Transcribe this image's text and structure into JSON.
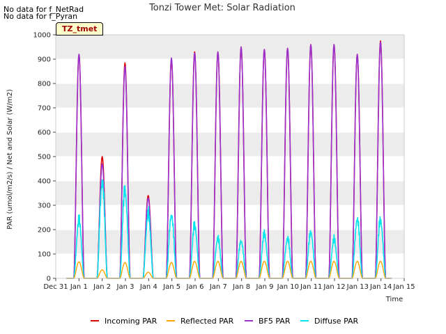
{
  "notes": [
    "No data for f_NetRad",
    "No data for f_Pyran"
  ],
  "badge": "TZ_tmet",
  "colors": {
    "incoming": "#dd0000",
    "reflected": "#ffa500",
    "bf5": "#9b30d0",
    "diffuse": "#00e5ee",
    "band": "#ececec"
  },
  "chart_data": {
    "type": "line",
    "title": "Tonzi Tower Met: Solar Radiation",
    "xlabel": "Time",
    "ylabel": "PAR (umol/m2/s) / Net and Solar (W/m2)",
    "ylim": [
      0,
      1000
    ],
    "xlim": [
      0,
      15
    ],
    "yticks": [
      0,
      100,
      200,
      300,
      400,
      500,
      600,
      700,
      800,
      900,
      1000
    ],
    "xticks": [
      {
        "v": 0,
        "label": "Dec 31"
      },
      {
        "v": 1,
        "label": "Jan 1"
      },
      {
        "v": 2,
        "label": "Jan 2"
      },
      {
        "v": 3,
        "label": "Jan 3"
      },
      {
        "v": 4,
        "label": "Jan 4"
      },
      {
        "v": 5,
        "label": "Jan 5"
      },
      {
        "v": 6,
        "label": "Jan 6"
      },
      {
        "v": 7,
        "label": "Jan 7"
      },
      {
        "v": 8,
        "label": "Jan 8"
      },
      {
        "v": 9,
        "label": "Jan 9"
      },
      {
        "v": 10,
        "label": "Jan 10"
      },
      {
        "v": 11,
        "label": "Jan 11"
      },
      {
        "v": 12,
        "label": "Jan 12"
      },
      {
        "v": 13,
        "label": "Jan 13"
      },
      {
        "v": 14,
        "label": "Jan 14"
      },
      {
        "v": 15,
        "label": "Jan 15"
      }
    ],
    "series": [
      {
        "name": "Incoming PAR",
        "key": "incoming",
        "daily_peaks": [
          920,
          500,
          885,
          340,
          900,
          930,
          930,
          950,
          940,
          945,
          960,
          960,
          920,
          975
        ]
      },
      {
        "name": "Reflected PAR",
        "key": "reflected",
        "daily_peaks": [
          68,
          35,
          65,
          25,
          65,
          70,
          70,
          70,
          70,
          70,
          70,
          70,
          70,
          70
        ]
      },
      {
        "name": "BF5 PAR",
        "key": "bf5",
        "daily_peaks": [
          920,
          470,
          870,
          330,
          905,
          925,
          930,
          950,
          940,
          945,
          960,
          960,
          920,
          970
        ]
      },
      {
        "name": "Diffuse PAR",
        "key": "diffuse",
        "daily_peaks": [
          270,
          450,
          410,
          300,
          295,
          245,
          185,
          175,
          205,
          185,
          215,
          180,
          275,
          270
        ]
      }
    ],
    "day_centers": [
      1.0,
      2.0,
      2.98,
      3.98,
      4.98,
      5.98,
      6.98,
      7.98,
      8.98,
      9.98,
      10.98,
      11.98,
      12.98,
      13.98
    ],
    "legend_placement": "bottom-center"
  }
}
